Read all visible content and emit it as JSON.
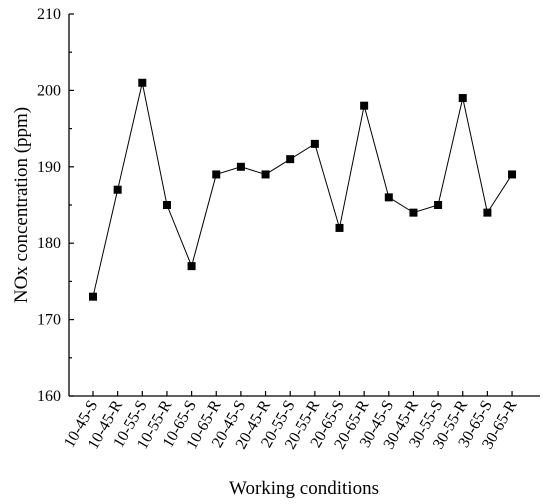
{
  "chart_data": {
    "type": "line",
    "title": "",
    "xlabel": "Working conditions",
    "ylabel": "NOx concentration (ppm)",
    "ylim": [
      160,
      210
    ],
    "yticks": [
      160,
      170,
      180,
      190,
      200,
      210
    ],
    "grid": false,
    "legend": "none",
    "marker": "square",
    "line_color": "#000000",
    "categories": [
      "10-45-S",
      "10-45-R",
      "10-55-S",
      "10-55-R",
      "10-65-S",
      "10-65-R",
      "20-45-S",
      "20-45-R",
      "20-55-S",
      "20-55-R",
      "20-65-S",
      "20-65-R",
      "30-45-S",
      "30-45-R",
      "30-55-S",
      "30-55-R",
      "30-65-S",
      "30-65-R"
    ],
    "series": [
      {
        "values": [
          173,
          187,
          201,
          185,
          177,
          189,
          190,
          189,
          191,
          193,
          182,
          198,
          186,
          184,
          185,
          199,
          184,
          189
        ]
      }
    ]
  }
}
